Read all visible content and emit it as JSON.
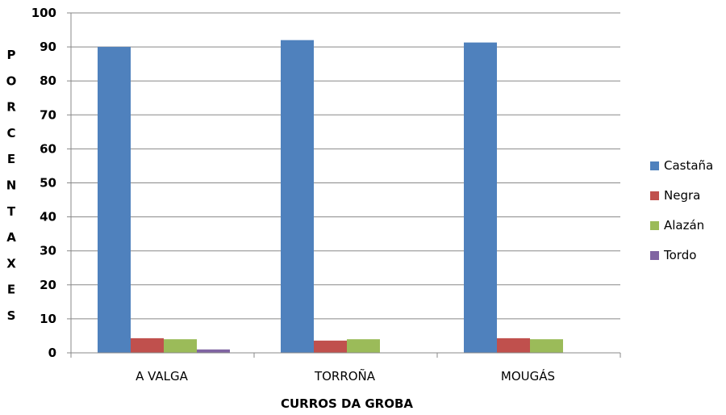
{
  "chart_data": {
    "type": "bar",
    "title": "",
    "xlabel": "CURROS DA GROBA",
    "ylabel": "PORCENTAXES",
    "categories": [
      "A VALGA",
      "TORROÑA",
      "MOUGÁS"
    ],
    "ylim": [
      0,
      100
    ],
    "yticks": [
      "0",
      "10",
      "20",
      "30",
      "40",
      "50",
      "60",
      "70",
      "80",
      "90",
      "100"
    ],
    "grid": true,
    "legend_position": "right",
    "series": [
      {
        "name": "Castaña",
        "color": "#4F81BD",
        "values": [
          90,
          92,
          91.3
        ]
      },
      {
        "name": "Negra",
        "color": "#C0504D",
        "values": [
          4.3,
          3.6,
          4.3
        ]
      },
      {
        "name": "Alazán",
        "color": "#9BBB59",
        "values": [
          4.0,
          4.0,
          4.0
        ]
      },
      {
        "name": "Tordo",
        "color": "#8064A2",
        "values": [
          1.0,
          0,
          0
        ]
      }
    ]
  }
}
